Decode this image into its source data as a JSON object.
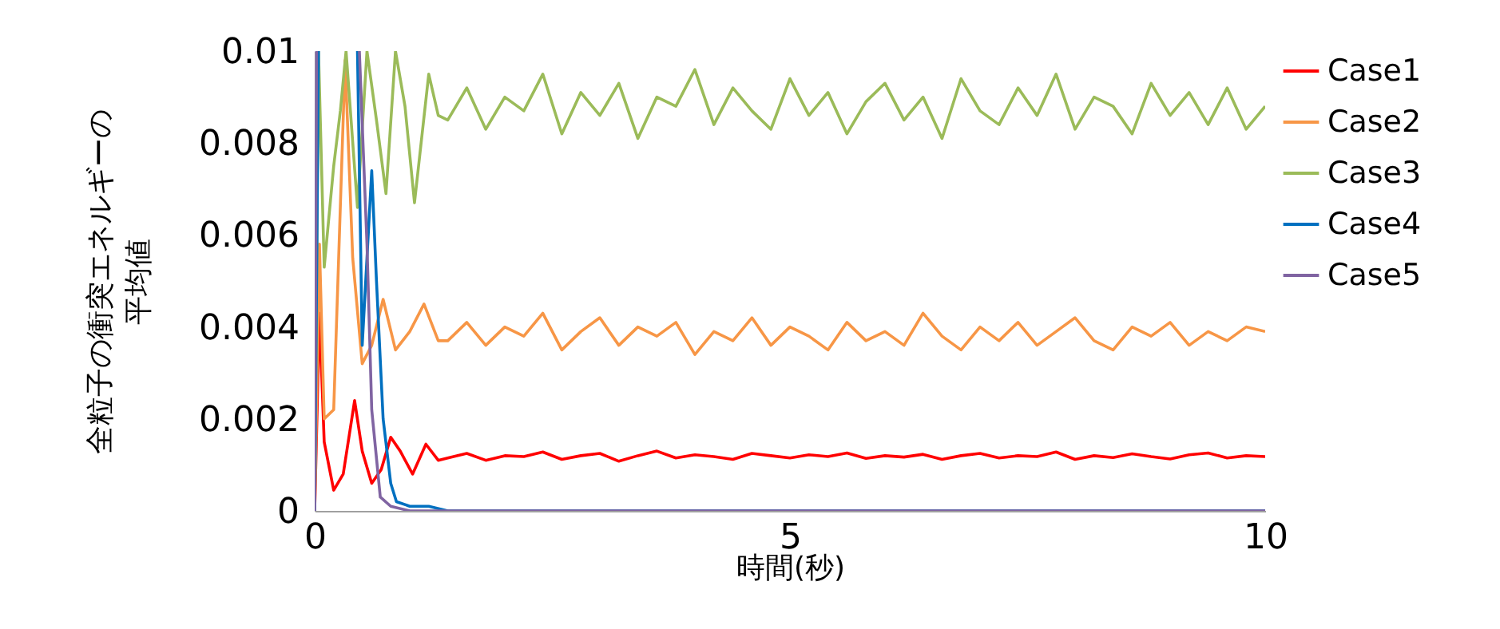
{
  "chart_data": {
    "type": "line",
    "xlabel": "時間(秒)",
    "ylabel": "全粒子の衝突エネルギーの平均値",
    "xlim": [
      0,
      10
    ],
    "xticks": [
      0,
      5,
      10
    ],
    "ylim": [
      0,
      0.01
    ],
    "yticks": [
      0,
      0.002,
      0.004,
      0.006,
      0.008,
      0.01
    ],
    "grid": false,
    "legend": "right",
    "marker": "none",
    "line_style": "solid",
    "series": [
      {
        "name": "Case1",
        "color": "#ff0000",
        "x": [
          0,
          0.05,
          0.1,
          0.2,
          0.3,
          0.42,
          0.5,
          0.6,
          0.7,
          0.8,
          0.9,
          1.03,
          1.17,
          1.3,
          1.4,
          1.6,
          1.8,
          2.0,
          2.2,
          2.4,
          2.6,
          2.8,
          3.0,
          3.2,
          3.4,
          3.6,
          3.8,
          4.0,
          4.2,
          4.4,
          4.6,
          4.8,
          5.0,
          5.2,
          5.4,
          5.6,
          5.8,
          6.0,
          6.2,
          6.4,
          6.6,
          6.8,
          7.0,
          7.2,
          7.4,
          7.6,
          7.8,
          8.0,
          8.2,
          8.4,
          8.6,
          8.8,
          9.0,
          9.2,
          9.4,
          9.6,
          9.8,
          10.0
        ],
        "values": [
          0,
          0.0043,
          0.0015,
          0.00045,
          0.0008,
          0.0024,
          0.0013,
          0.0006,
          0.0009,
          0.0016,
          0.0013,
          0.0008,
          0.00145,
          0.0011,
          0.00115,
          0.00125,
          0.0011,
          0.0012,
          0.00118,
          0.00128,
          0.00112,
          0.0012,
          0.00125,
          0.00108,
          0.0012,
          0.0013,
          0.00115,
          0.00122,
          0.00118,
          0.00112,
          0.00125,
          0.0012,
          0.00115,
          0.00122,
          0.00118,
          0.00126,
          0.00114,
          0.0012,
          0.00117,
          0.00123,
          0.00112,
          0.0012,
          0.00125,
          0.00115,
          0.0012,
          0.00118,
          0.00128,
          0.00112,
          0.0012,
          0.00116,
          0.00124,
          0.00118,
          0.00113,
          0.00122,
          0.00126,
          0.00115,
          0.0012,
          0.00118
        ]
      },
      {
        "name": "Case2",
        "color": "#f79646",
        "x": [
          0,
          0.05,
          0.1,
          0.2,
          0.32,
          0.4,
          0.5,
          0.6,
          0.72,
          0.85,
          1.0,
          1.15,
          1.3,
          1.4,
          1.6,
          1.8,
          2.0,
          2.2,
          2.4,
          2.6,
          2.8,
          3.0,
          3.2,
          3.4,
          3.6,
          3.8,
          4.0,
          4.2,
          4.4,
          4.6,
          4.8,
          5.0,
          5.2,
          5.4,
          5.6,
          5.8,
          6.0,
          6.2,
          6.4,
          6.6,
          6.8,
          7.0,
          7.2,
          7.4,
          7.6,
          7.8,
          8.0,
          8.2,
          8.4,
          8.6,
          8.8,
          9.0,
          9.2,
          9.4,
          9.6,
          9.8,
          10.0
        ],
        "values": [
          0,
          0.0058,
          0.002,
          0.0022,
          0.0098,
          0.0055,
          0.0032,
          0.0036,
          0.0046,
          0.0035,
          0.0039,
          0.0045,
          0.0037,
          0.0037,
          0.0041,
          0.0036,
          0.004,
          0.0038,
          0.0043,
          0.0035,
          0.0039,
          0.0042,
          0.0036,
          0.004,
          0.0038,
          0.0041,
          0.0034,
          0.0039,
          0.0037,
          0.0042,
          0.0036,
          0.004,
          0.0038,
          0.0035,
          0.0041,
          0.0037,
          0.0039,
          0.0036,
          0.0043,
          0.0038,
          0.0035,
          0.004,
          0.0037,
          0.0041,
          0.0036,
          0.0039,
          0.0042,
          0.0037,
          0.0035,
          0.004,
          0.0038,
          0.0041,
          0.0036,
          0.0039,
          0.0037,
          0.004,
          0.0039
        ]
      },
      {
        "name": "Case3",
        "color": "#9bbb59",
        "x": [
          0,
          0.04,
          0.1,
          0.2,
          0.27,
          0.33,
          0.45,
          0.55,
          0.65,
          0.75,
          0.85,
          0.95,
          1.05,
          1.2,
          1.3,
          1.4,
          1.6,
          1.8,
          2.0,
          2.2,
          2.4,
          2.6,
          2.8,
          3.0,
          3.2,
          3.4,
          3.6,
          3.8,
          4.0,
          4.2,
          4.4,
          4.6,
          4.8,
          5.0,
          5.2,
          5.4,
          5.6,
          5.8,
          6.0,
          6.2,
          6.4,
          6.6,
          6.8,
          7.0,
          7.2,
          7.4,
          7.6,
          7.8,
          8.0,
          8.2,
          8.4,
          8.6,
          8.8,
          9.0,
          9.2,
          9.4,
          9.6,
          9.8,
          10.0
        ],
        "values": [
          0,
          0.01,
          0.0053,
          0.0075,
          0.0087,
          0.01,
          0.0066,
          0.01,
          0.0085,
          0.0069,
          0.01,
          0.0088,
          0.0067,
          0.0095,
          0.0086,
          0.0085,
          0.0092,
          0.0083,
          0.009,
          0.0087,
          0.0095,
          0.0082,
          0.0091,
          0.0086,
          0.0093,
          0.0081,
          0.009,
          0.0088,
          0.0096,
          0.0084,
          0.0092,
          0.0087,
          0.0083,
          0.0094,
          0.0086,
          0.0091,
          0.0082,
          0.0089,
          0.0093,
          0.0085,
          0.009,
          0.0081,
          0.0094,
          0.0087,
          0.0084,
          0.0092,
          0.0086,
          0.0095,
          0.0083,
          0.009,
          0.0088,
          0.0082,
          0.0093,
          0.0086,
          0.0091,
          0.0084,
          0.0092,
          0.0083,
          0.0088
        ]
      },
      {
        "name": "Case4",
        "color": "#0070c0",
        "x": [
          0,
          0.04,
          0.2,
          0.45,
          0.5,
          0.55,
          0.6,
          0.65,
          0.72,
          0.8,
          0.86,
          1.0,
          1.2,
          1.4,
          10
        ],
        "values": [
          0,
          0.01,
          null,
          0.01,
          0.0036,
          0.0055,
          0.0074,
          0.005,
          0.002,
          0.0006,
          0.0002,
          0.0001,
          0.0001,
          0,
          0
        ]
      },
      {
        "name": "Case5",
        "color": "#8064a2",
        "x": [
          0,
          0.02,
          0.2,
          0.47,
          0.55,
          0.6,
          0.69,
          0.8,
          1.0,
          10
        ],
        "values": [
          0,
          0.01,
          null,
          0.01,
          0.0058,
          0.0022,
          0.0003,
          0.0001,
          0,
          0
        ]
      }
    ]
  }
}
